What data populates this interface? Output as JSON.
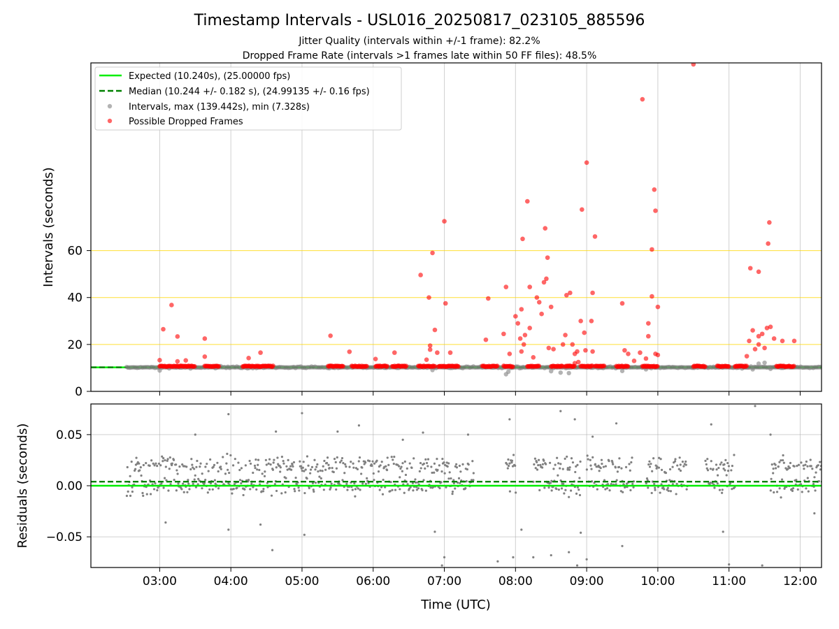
{
  "title": "Timestamp Intervals - USL016_20250817_023105_885596",
  "subtitle_1": "Jitter Quality (intervals within +/-1 frame): 82.2%",
  "subtitle_2": "Dropped Frame Rate (intervals >1 frames late within 50 FF files): 48.5%",
  "colors": {
    "expected": "#00ee00",
    "median": "#008000",
    "intervals": "#808080",
    "dropped": "#ff0000",
    "threshold": "#ffd700",
    "grid": "#b0b0b0"
  },
  "chart_data": [
    {
      "type": "scatter",
      "ylabel": "Intervals (seconds)",
      "xlim": [
        "02:02",
        "12:18"
      ],
      "ylim": [
        0,
        140
      ],
      "y_ticks": [
        "0",
        "20",
        "40",
        "60"
      ],
      "x_ticks": [
        "03:00",
        "04:00",
        "05:00",
        "06:00",
        "07:00",
        "08:00",
        "09:00",
        "10:00",
        "11:00",
        "12:00"
      ],
      "grid": "vertical lines + horizontal threshold lines at 20, 40, 60",
      "legend_position": "upper-left",
      "legend": {
        "expected": "Expected (10.240s), (25.00000 fps)",
        "median": "Median (10.244 +/- 0.182 s), (24.99135 +/- 0.16 fps)",
        "intervals": "Intervals, max (139.442s), min (7.328s)",
        "dropped": "Possible Dropped Frames"
      },
      "expected_interval": 10.24,
      "median_interval": 10.244,
      "threshold_lines": [
        20,
        40,
        60
      ],
      "normal_band": {
        "x_start": "02:32",
        "x_end": "12:18",
        "y": 10.24
      },
      "normal_outliers": [
        [
          "03:00",
          8.9
        ],
        [
          "06:50",
          9.1
        ],
        [
          "07:52",
          7.3
        ],
        [
          "07:54",
          8.4
        ],
        [
          "08:30",
          8.6
        ],
        [
          "08:38",
          8.0
        ],
        [
          "08:45",
          7.8
        ],
        [
          "09:30",
          8.7
        ],
        [
          "09:50",
          9.4
        ],
        [
          "11:20",
          9.4
        ],
        [
          "11:25",
          11.8
        ],
        [
          "11:30",
          12.2
        ],
        [
          "11:35",
          9.6
        ]
      ],
      "dropped_clusters": [
        [
          "03:00",
          "03:30"
        ],
        [
          "03:38",
          "03:50"
        ],
        [
          "04:10",
          "04:30"
        ],
        [
          "04:30",
          "04:36"
        ],
        [
          "05:22",
          "05:35"
        ],
        [
          "05:42",
          "05:55"
        ],
        [
          "06:02",
          "06:12"
        ],
        [
          "06:16",
          "06:28"
        ],
        [
          "06:38",
          "06:52"
        ],
        [
          "06:55",
          "07:12"
        ],
        [
          "07:32",
          "07:45"
        ],
        [
          "07:50",
          "07:58"
        ],
        [
          "08:10",
          "08:20"
        ],
        [
          "08:30",
          "08:40"
        ],
        [
          "08:42",
          "08:50"
        ],
        [
          "08:55",
          "09:05"
        ],
        [
          "09:07",
          "09:15"
        ],
        [
          "09:25",
          "09:35"
        ],
        [
          "09:47",
          "10:00"
        ],
        [
          "10:30",
          "10:40"
        ],
        [
          "10:50",
          "11:00"
        ],
        [
          "11:05",
          "11:15"
        ],
        [
          "11:40",
          "11:55"
        ]
      ],
      "dropped_points": [
        [
          "03:00",
          13.3
        ],
        [
          "03:03",
          26.5
        ],
        [
          "03:10",
          36.8
        ],
        [
          "03:15",
          23.4
        ],
        [
          "03:15",
          12.8
        ],
        [
          "03:22",
          13.2
        ],
        [
          "03:38",
          22.5
        ],
        [
          "03:38",
          14.8
        ],
        [
          "04:15",
          14.2
        ],
        [
          "04:25",
          16.5
        ],
        [
          "05:24",
          23.7
        ],
        [
          "05:40",
          16.9
        ],
        [
          "06:02",
          13.8
        ],
        [
          "06:18",
          16.5
        ],
        [
          "06:40",
          49.6
        ],
        [
          "06:45",
          13.5
        ],
        [
          "06:47",
          40.0
        ],
        [
          "06:48",
          19.5
        ],
        [
          "06:48",
          17.8
        ],
        [
          "06:50",
          59.0
        ],
        [
          "06:52",
          26.2
        ],
        [
          "06:54",
          16.5
        ],
        [
          "07:00",
          72.5
        ],
        [
          "07:01",
          37.5
        ],
        [
          "07:05",
          16.5
        ],
        [
          "07:35",
          22.0
        ],
        [
          "07:37",
          39.6
        ],
        [
          "07:50",
          24.5
        ],
        [
          "07:52",
          44.5
        ],
        [
          "07:55",
          16.0
        ],
        [
          "08:00",
          32.0
        ],
        [
          "08:02",
          29.0
        ],
        [
          "08:04",
          22.5
        ],
        [
          "08:05",
          35.0
        ],
        [
          "08:05",
          17.0
        ],
        [
          "08:06",
          65.0
        ],
        [
          "08:07",
          20.0
        ],
        [
          "08:08",
          24.0
        ],
        [
          "08:10",
          81.0
        ],
        [
          "08:12",
          44.5
        ],
        [
          "08:12",
          27.0
        ],
        [
          "08:15",
          14.5
        ],
        [
          "08:18",
          40.0
        ],
        [
          "08:20",
          38.0
        ],
        [
          "08:22",
          33.0
        ],
        [
          "08:24",
          46.5
        ],
        [
          "08:25",
          69.5
        ],
        [
          "08:26",
          48.0
        ],
        [
          "08:27",
          57.0
        ],
        [
          "08:28",
          18.5
        ],
        [
          "08:30",
          36.0
        ],
        [
          "08:32",
          18.0
        ],
        [
          "08:40",
          20.0
        ],
        [
          "08:42",
          24.0
        ],
        [
          "08:43",
          41.0
        ],
        [
          "08:46",
          42.0
        ],
        [
          "08:48",
          20.0
        ],
        [
          "08:50",
          16.0
        ],
        [
          "08:50",
          12.0
        ],
        [
          "08:52",
          17.0
        ],
        [
          "08:53",
          12.5
        ],
        [
          "08:55",
          30.0
        ],
        [
          "08:56",
          77.5
        ],
        [
          "08:58",
          25.0
        ],
        [
          "08:59",
          17.5
        ],
        [
          "09:00",
          97.5
        ],
        [
          "09:04",
          30.0
        ],
        [
          "09:05",
          17.0
        ],
        [
          "09:05",
          42.0
        ],
        [
          "09:07",
          66.0
        ],
        [
          "09:30",
          37.5
        ],
        [
          "09:32",
          17.5
        ],
        [
          "09:35",
          16.0
        ],
        [
          "09:40",
          13.0
        ],
        [
          "09:45",
          16.5
        ],
        [
          "09:47",
          124.5
        ],
        [
          "09:50",
          14.0
        ],
        [
          "09:52",
          29.0
        ],
        [
          "09:52",
          23.5
        ],
        [
          "09:55",
          40.5
        ],
        [
          "09:55",
          60.5
        ],
        [
          "09:57",
          86.0
        ],
        [
          "09:58",
          16.0
        ],
        [
          "09:58",
          77.0
        ],
        [
          "10:00",
          36.0
        ],
        [
          "10:00",
          15.5
        ],
        [
          "10:30",
          139.4
        ],
        [
          "11:15",
          15.0
        ],
        [
          "11:17",
          21.5
        ],
        [
          "11:18",
          52.5
        ],
        [
          "11:20",
          26.0
        ],
        [
          "11:22",
          18.0
        ],
        [
          "11:25",
          23.5
        ],
        [
          "11:25",
          51.0
        ],
        [
          "11:25",
          20.0
        ],
        [
          "11:28",
          24.5
        ],
        [
          "11:30",
          18.5
        ],
        [
          "11:32",
          27.0
        ],
        [
          "11:33",
          63.0
        ],
        [
          "11:34",
          72.0
        ],
        [
          "11:35",
          27.5
        ],
        [
          "11:38",
          22.5
        ],
        [
          "11:45",
          21.5
        ],
        [
          "11:55",
          21.5
        ]
      ]
    },
    {
      "type": "scatter",
      "xlabel": "Time (UTC)",
      "ylabel": "Residuals (seconds)",
      "xlim": [
        "02:02",
        "12:18"
      ],
      "ylim": [
        -0.08,
        0.08
      ],
      "y_ticks": [
        "0.05",
        "0.00",
        "−0.05"
      ],
      "x_ticks": [
        "03:00",
        "04:00",
        "05:00",
        "06:00",
        "07:00",
        "08:00",
        "09:00",
        "10:00",
        "11:00",
        "12:00"
      ],
      "grid": "vertical and horizontal",
      "expected_residual": 0.0,
      "median_residual": 0.004,
      "residual_bands": [
        0.0,
        0.02
      ],
      "coverage_segments": [
        [
          "02:32",
          "07:25"
        ],
        [
          "07:52",
          "08:00"
        ],
        [
          "08:15",
          "08:55"
        ],
        [
          "09:00",
          "09:40"
        ],
        [
          "09:50",
          "10:25"
        ],
        [
          "10:40",
          "11:05"
        ],
        [
          "11:35",
          "12:18"
        ]
      ],
      "residual_outliers": [
        [
          "03:05",
          -0.036
        ],
        [
          "03:30",
          0.05
        ],
        [
          "03:58",
          0.07
        ],
        [
          "03:58",
          -0.043
        ],
        [
          "04:25",
          -0.038
        ],
        [
          "04:35",
          -0.063
        ],
        [
          "04:38",
          0.053
        ],
        [
          "05:00",
          0.071
        ],
        [
          "05:02",
          -0.048
        ],
        [
          "05:30",
          0.053
        ],
        [
          "05:48",
          0.059
        ],
        [
          "06:25",
          0.045
        ],
        [
          "06:42",
          0.052
        ],
        [
          "06:52",
          -0.045
        ],
        [
          "06:58",
          -0.078
        ],
        [
          "07:00",
          -0.07
        ],
        [
          "07:20",
          0.05
        ],
        [
          "07:45",
          -0.074
        ],
        [
          "07:55",
          0.065
        ],
        [
          "07:58",
          -0.07
        ],
        [
          "08:05",
          -0.043
        ],
        [
          "08:15",
          -0.07
        ],
        [
          "08:30",
          -0.068
        ],
        [
          "08:38",
          0.073
        ],
        [
          "08:45",
          -0.065
        ],
        [
          "08:50",
          0.065
        ],
        [
          "08:52",
          -0.078
        ],
        [
          "08:55",
          -0.046
        ],
        [
          "09:00",
          -0.072
        ],
        [
          "09:05",
          0.048
        ],
        [
          "09:25",
          0.061
        ],
        [
          "09:30",
          -0.059
        ],
        [
          "10:45",
          0.06
        ],
        [
          "10:55",
          -0.045
        ],
        [
          "11:00",
          -0.077
        ],
        [
          "11:22",
          0.078
        ],
        [
          "11:28",
          -0.078
        ],
        [
          "11:35",
          0.05
        ],
        [
          "12:12",
          -0.027
        ]
      ]
    }
  ]
}
